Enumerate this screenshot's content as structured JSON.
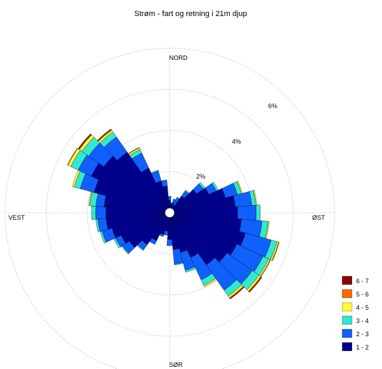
{
  "chart_data": {
    "type": "wind-rose",
    "title": "Strøm - fart og retning i 21m djup",
    "directions": {
      "north": "NORD",
      "east": "ØST",
      "south": "SØR",
      "west": "VEST"
    },
    "rings": [
      {
        "value": 2,
        "label": "2%"
      },
      {
        "value": 4,
        "label": "4%"
      },
      {
        "value": 6,
        "label": "6%"
      }
    ],
    "r_max": 8,
    "sector_width_deg": 10,
    "sector_centers_deg": [
      0,
      10,
      20,
      30,
      40,
      50,
      60,
      70,
      80,
      90,
      100,
      110,
      120,
      130,
      140,
      150,
      160,
      170,
      180,
      190,
      200,
      210,
      220,
      230,
      240,
      250,
      260,
      270,
      280,
      290,
      300,
      310,
      320,
      330,
      340,
      350
    ],
    "series": [
      {
        "name": "1 - 2",
        "color": "#00008f",
        "values": [
          0.6,
          0.4,
          0.5,
          0.4,
          1.0,
          1.6,
          2.1,
          2.8,
          3.2,
          3.3,
          3.5,
          3.8,
          3.6,
          3.4,
          3.1,
          2.4,
          2.0,
          1.8,
          1.3,
          0.9,
          1.1,
          1.5,
          1.9,
          2.4,
          2.6,
          2.9,
          3.1,
          3.1,
          3.2,
          3.8,
          4.2,
          3.9,
          3.6,
          2.4,
          1.6,
          1.3
        ]
      },
      {
        "name": "2 - 3",
        "color": "#1060ff",
        "values": [
          0.2,
          0.1,
          0.2,
          0.4,
          0.3,
          0.4,
          0.4,
          0.6,
          0.8,
          0.9,
          1.0,
          1.3,
          1.4,
          1.5,
          1.5,
          1.2,
          0.9,
          0.7,
          0.3,
          0.2,
          0.1,
          0.2,
          0.3,
          0.4,
          0.3,
          0.5,
          0.4,
          0.5,
          0.4,
          0.7,
          0.7,
          0.9,
          0.9,
          0.8,
          0.5,
          0.3
        ]
      },
      {
        "name": "3 - 4",
        "color": "#33e8d0",
        "values": [
          0.0,
          0.0,
          0.0,
          0.05,
          0.05,
          0.1,
          0.1,
          0.2,
          0.2,
          0.2,
          0.3,
          0.3,
          0.3,
          0.4,
          0.35,
          0.3,
          0.1,
          0.05,
          0.0,
          0.0,
          0.0,
          0.0,
          0.05,
          0.05,
          0.1,
          0.1,
          0.1,
          0.2,
          0.3,
          0.3,
          0.4,
          0.4,
          0.3,
          0.2,
          0.05,
          0.0
        ]
      },
      {
        "name": "4 - 5",
        "color": "#ffff33",
        "values": [
          0.0,
          0.0,
          0.0,
          0.0,
          0.0,
          0.0,
          0.0,
          0.05,
          0.05,
          0.0,
          0.05,
          0.08,
          0.08,
          0.1,
          0.1,
          0.08,
          0.0,
          0.0,
          0.0,
          0.0,
          0.0,
          0.0,
          0.0,
          0.0,
          0.0,
          0.0,
          0.0,
          0.0,
          0.05,
          0.1,
          0.15,
          0.15,
          0.1,
          0.08,
          0.0,
          0.0
        ]
      },
      {
        "name": "5 - 6",
        "color": "#ff6a00",
        "values": [
          0.0,
          0.0,
          0.0,
          0.0,
          0.0,
          0.0,
          0.0,
          0.0,
          0.0,
          0.0,
          0.0,
          0.03,
          0.03,
          0.04,
          0.04,
          0.0,
          0.0,
          0.0,
          0.0,
          0.0,
          0.0,
          0.0,
          0.0,
          0.0,
          0.0,
          0.0,
          0.0,
          0.0,
          0.0,
          0.0,
          0.03,
          0.04,
          0.04,
          0.03,
          0.0,
          0.0
        ]
      },
      {
        "name": "6 - 7",
        "color": "#8b0000",
        "values": [
          0.0,
          0.0,
          0.0,
          0.0,
          0.0,
          0.0,
          0.0,
          0.0,
          0.0,
          0.0,
          0.0,
          0.0,
          0.0,
          0.03,
          0.03,
          0.0,
          0.0,
          0.0,
          0.0,
          0.0,
          0.0,
          0.0,
          0.0,
          0.0,
          0.0,
          0.0,
          0.0,
          0.0,
          0.0,
          0.0,
          0.0,
          0.04,
          0.03,
          0.0,
          0.0,
          0.0
        ]
      }
    ],
    "legend": {
      "position": "bottom-right",
      "order": [
        "6 - 7",
        "5 - 6",
        "4 - 5",
        "3 - 4",
        "2 - 3",
        "1 - 2"
      ]
    },
    "grid": true
  }
}
